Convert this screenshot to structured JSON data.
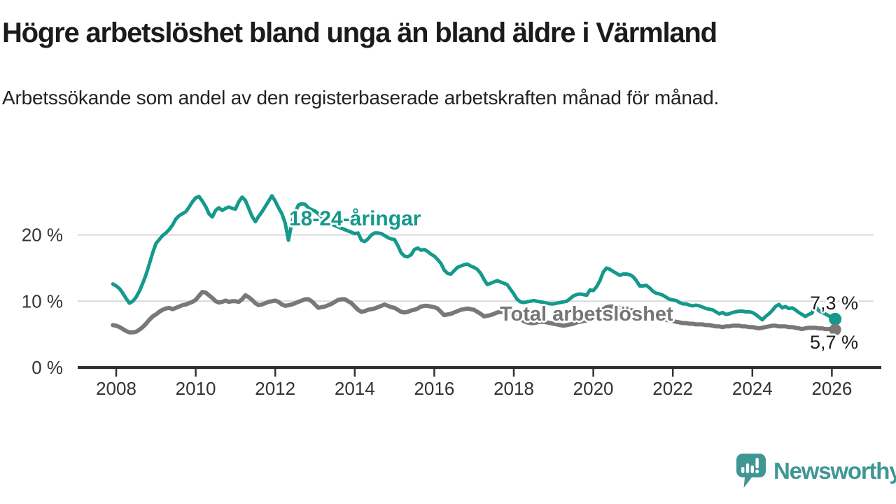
{
  "header": {
    "title": "Högre arbetslöshet bland unga än bland äldre i Värmland",
    "subtitle": "Arbetssökande som andel av den registerbaserade arbetskraften månad för månad."
  },
  "chart": {
    "y_ticks": [
      {
        "value": 0,
        "label": "0 %"
      },
      {
        "value": 10,
        "label": "10 %"
      },
      {
        "value": 20,
        "label": "20 %"
      }
    ],
    "x_ticks": [
      {
        "year": 2008,
        "label": "2008"
      },
      {
        "year": 2010,
        "label": "2010"
      },
      {
        "year": 2012,
        "label": "2012"
      },
      {
        "year": 2014,
        "label": "2014"
      },
      {
        "year": 2016,
        "label": "2016"
      },
      {
        "year": 2018,
        "label": "2018"
      },
      {
        "year": 2020,
        "label": "2020"
      },
      {
        "year": 2022,
        "label": "2022"
      },
      {
        "year": 2024,
        "label": "2024"
      },
      {
        "year": 2026,
        "label": "2026"
      }
    ]
  },
  "chart_data": {
    "type": "line",
    "title": "Högre arbetslöshet bland unga än bland äldre i Värmland",
    "xlabel": "",
    "ylabel": "Arbetssökande som andel av den registerbaserade arbetskraften",
    "unit": "%",
    "x_range": [
      2007.9,
      2026.35
    ],
    "ylim": [
      0,
      27
    ],
    "grid": "horizontal",
    "legend": "inline-labels",
    "series": [
      {
        "name": "18-24-åringar",
        "color": "#15998C",
        "start_year": 2007,
        "start_month": 12,
        "interval": "monthly",
        "end_value_label": "7,3 %",
        "values": [
          12.6,
          12.3,
          11.9,
          11.2,
          10.4,
          9.7,
          10.0,
          10.6,
          11.5,
          12.7,
          14.0,
          15.6,
          17.3,
          18.7,
          19.3,
          19.9,
          20.3,
          20.8,
          21.5,
          22.4,
          22.9,
          23.2,
          23.5,
          24.2,
          25.0,
          25.6,
          25.8,
          25.1,
          24.3,
          23.2,
          22.7,
          23.7,
          24.1,
          23.7,
          24.0,
          24.2,
          24.0,
          23.9,
          25.0,
          25.7,
          25.2,
          24.0,
          22.8,
          22.0,
          22.8,
          23.5,
          24.3,
          25.1,
          25.9,
          25.1,
          24.1,
          23.2,
          21.8,
          19.2,
          21.8,
          23.4,
          24.5,
          24.7,
          24.6,
          24.1,
          23.8,
          23.6,
          23.2,
          22.7,
          22.3,
          22.0,
          21.7,
          21.4,
          21.2,
          21.0,
          20.8,
          20.6,
          20.4,
          20.2,
          20.3,
          19.2,
          19.0,
          19.4,
          20.0,
          20.3,
          20.3,
          20.2,
          19.9,
          19.6,
          19.4,
          19.3,
          18.4,
          17.3,
          16.8,
          16.7,
          17.0,
          17.8,
          18.0,
          17.7,
          17.8,
          17.5,
          17.1,
          16.8,
          16.3,
          15.7,
          14.7,
          14.2,
          14.1,
          14.6,
          15.1,
          15.3,
          15.5,
          15.6,
          15.3,
          15.1,
          14.8,
          14.2,
          13.3,
          12.5,
          12.7,
          12.9,
          13.1,
          12.9,
          12.7,
          12.5,
          11.8,
          11.1,
          10.3,
          9.9,
          9.8,
          9.9,
          10.0,
          10.1,
          10.0,
          9.9,
          9.8,
          9.7,
          9.6,
          9.6,
          9.7,
          9.8,
          9.9,
          10.0,
          10.4,
          10.8,
          11.0,
          11.1,
          11.0,
          10.9,
          11.7,
          11.6,
          12.2,
          13.1,
          14.4,
          15.0,
          14.8,
          14.5,
          14.2,
          13.9,
          14.1,
          14.1,
          14.0,
          13.7,
          13.1,
          12.3,
          12.3,
          12.4,
          12.0,
          11.5,
          11.2,
          11.1,
          10.9,
          10.6,
          10.3,
          10.2,
          10.1,
          9.8,
          9.6,
          9.6,
          9.4,
          9.3,
          9.4,
          9.3,
          9.1,
          8.9,
          8.8,
          8.7,
          8.4,
          8.1,
          8.3,
          8.0,
          8.1,
          8.3,
          8.4,
          8.5,
          8.5,
          8.4,
          8.4,
          8.3,
          8.0,
          7.6,
          7.2,
          7.7,
          8.1,
          8.6,
          9.2,
          9.5,
          9.0,
          9.2,
          8.9,
          9.0,
          8.7,
          8.3,
          8.0,
          7.7,
          8.0,
          8.2,
          9.3,
          8.6,
          8.3,
          8.1,
          7.8,
          7.6,
          7.3
        ]
      },
      {
        "name": "Total arbetslöshet",
        "color": "#787878",
        "start_year": 2007,
        "start_month": 12,
        "interval": "monthly",
        "end_value_label": "5,7 %",
        "values": [
          6.4,
          6.3,
          6.1,
          5.8,
          5.5,
          5.3,
          5.3,
          5.4,
          5.7,
          6.1,
          6.6,
          7.2,
          7.7,
          8.0,
          8.4,
          8.7,
          8.9,
          9.0,
          8.8,
          9.0,
          9.2,
          9.4,
          9.5,
          9.7,
          9.9,
          10.2,
          10.8,
          11.4,
          11.3,
          10.9,
          10.5,
          10.0,
          9.8,
          9.9,
          10.1,
          9.9,
          10.0,
          10.0,
          9.9,
          10.3,
          10.9,
          10.6,
          10.2,
          9.7,
          9.4,
          9.5,
          9.7,
          9.9,
          10.0,
          10.1,
          9.9,
          9.5,
          9.3,
          9.4,
          9.5,
          9.7,
          9.9,
          10.1,
          10.3,
          10.3,
          10.0,
          9.5,
          9.0,
          9.1,
          9.2,
          9.4,
          9.6,
          9.9,
          10.2,
          10.3,
          10.3,
          10.0,
          9.7,
          9.2,
          8.7,
          8.4,
          8.5,
          8.7,
          8.8,
          8.9,
          9.1,
          9.3,
          9.5,
          9.3,
          9.1,
          9.0,
          8.7,
          8.4,
          8.3,
          8.4,
          8.6,
          8.7,
          8.9,
          9.2,
          9.3,
          9.3,
          9.2,
          9.1,
          8.9,
          8.4,
          7.9,
          8.0,
          8.1,
          8.3,
          8.5,
          8.7,
          8.8,
          8.9,
          8.8,
          8.7,
          8.4,
          8.1,
          7.7,
          7.8,
          7.9,
          8.1,
          8.3,
          8.4,
          8.3,
          8.2,
          8.1,
          7.9,
          7.6,
          7.3,
          7.0,
          6.8,
          6.7,
          6.7,
          6.8,
          6.9,
          6.9,
          6.8,
          6.7,
          6.6,
          6.5,
          6.4,
          6.3,
          6.4,
          6.5,
          6.6,
          6.8,
          6.9,
          7.0,
          7.1,
          7.3,
          7.5,
          7.7,
          8.2,
          8.8,
          9.1,
          9.2,
          9.2,
          9.1,
          9.0,
          8.9,
          8.8,
          8.7,
          8.6,
          8.5,
          8.3,
          8.1,
          7.9,
          7.7,
          7.6,
          7.5,
          7.4,
          7.3,
          7.2,
          7.1,
          7.0,
          6.9,
          6.8,
          6.7,
          6.7,
          6.6,
          6.6,
          6.5,
          6.5,
          6.5,
          6.4,
          6.4,
          6.3,
          6.2,
          6.2,
          6.1,
          6.2,
          6.2,
          6.3,
          6.3,
          6.3,
          6.2,
          6.2,
          6.1,
          6.1,
          6.0,
          5.9,
          6.0,
          6.1,
          6.2,
          6.3,
          6.3,
          6.2,
          6.2,
          6.2,
          6.1,
          6.1,
          6.0,
          5.9,
          5.8,
          5.9,
          6.0,
          6.0,
          6.0,
          5.9,
          5.9,
          5.8,
          5.8,
          5.8,
          5.7
        ]
      }
    ]
  },
  "annotations": {
    "youth_end": "7,3 %",
    "total_end": "5,7 %"
  },
  "branding": {
    "wordmark": "Newsworthy"
  },
  "colors": {
    "youth_line": "#15998C",
    "total_line": "#787878",
    "gridline": "#D9D9D9",
    "axis": "#2E2E2E",
    "tick_text": "#333333",
    "title_text": "#1b1b1b",
    "value_label_text": "#1c1c1c",
    "logo": "#3E9795"
  }
}
